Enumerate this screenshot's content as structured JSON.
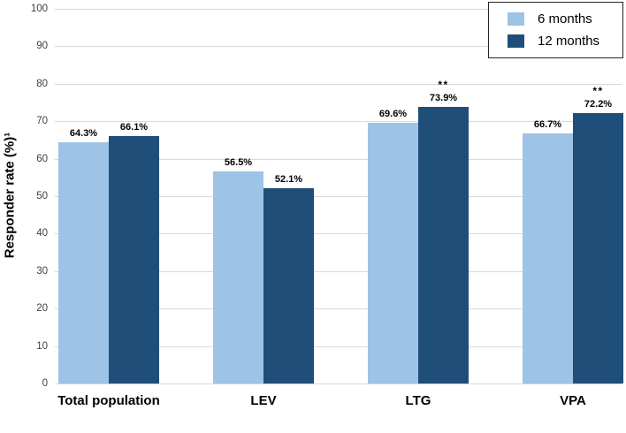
{
  "chart_data": {
    "type": "bar",
    "title": "",
    "ylabel": "Responder rate (%)¹",
    "xlabel": "",
    "ylim": [
      0,
      100
    ],
    "ytick_step": 10,
    "yticks": [
      "0",
      "10",
      "20",
      "30",
      "40",
      "50",
      "60",
      "70",
      "80",
      "90",
      "100"
    ],
    "grid": true,
    "gridline_color": "#d9d9d9",
    "tick_label_color": "#404040",
    "legend_position": "top-right",
    "categories": [
      "Total population",
      "LEV",
      "LTG",
      "VPA"
    ],
    "series": [
      {
        "name": "6 months",
        "color": "#9dc3e6",
        "values": [
          64.3,
          56.5,
          69.6,
          66.7
        ],
        "labels": [
          "64.3%",
          "56.5%",
          "69.6%",
          "66.7%"
        ],
        "annotations": [
          "",
          "",
          "",
          ""
        ]
      },
      {
        "name": "12 months",
        "color": "#1f4e79",
        "values": [
          66.1,
          52.1,
          73.9,
          72.2
        ],
        "labels": [
          "66.1%",
          "52.1%",
          "73.9%",
          "72.2%"
        ],
        "annotations": [
          "",
          "",
          "**",
          "**"
        ]
      }
    ]
  }
}
